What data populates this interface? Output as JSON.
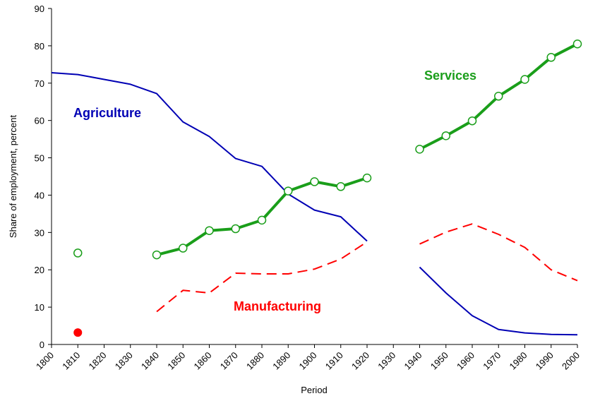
{
  "chart_data": {
    "type": "line",
    "title": "",
    "xlabel": "Period",
    "ylabel": "Share of employment, percent",
    "xlim": [
      1800,
      2000
    ],
    "ylim": [
      0,
      90
    ],
    "x_ticks": [
      1800,
      1810,
      1820,
      1830,
      1840,
      1850,
      1860,
      1870,
      1880,
      1890,
      1900,
      1910,
      1920,
      1930,
      1940,
      1950,
      1960,
      1970,
      1980,
      1990,
      2000
    ],
    "x_tick_labels": [
      "1800",
      "1810",
      "1820",
      "1830",
      "1840",
      "1850",
      "1860",
      "1870",
      "1880",
      "1890",
      "1900",
      "1910",
      "1920",
      "1930",
      "1940",
      "1950",
      "1960",
      "1970",
      "1980",
      "1990",
      "2000"
    ],
    "y_ticks": [
      0,
      10,
      20,
      30,
      40,
      50,
      60,
      70,
      80,
      90
    ],
    "y_tick_labels": [
      "0",
      "10",
      "20",
      "30",
      "40",
      "50",
      "60",
      "70",
      "80",
      "90"
    ],
    "grid": false,
    "series": [
      {
        "name": "Agriculture",
        "label": "Agriculture",
        "color": "#0000b4",
        "style": "solid",
        "segments": [
          [
            [
              1800,
              72.8
            ],
            [
              1810,
              72.3
            ],
            [
              1820,
              71.0
            ],
            [
              1830,
              69.7
            ],
            [
              1840,
              67.2
            ],
            [
              1850,
              59.6
            ],
            [
              1860,
              55.7
            ],
            [
              1870,
              49.8
            ],
            [
              1880,
              47.7
            ],
            [
              1890,
              40.3
            ],
            [
              1900,
              36.0
            ],
            [
              1910,
              34.2
            ],
            [
              1920,
              27.7
            ]
          ],
          [
            [
              1940,
              20.7
            ],
            [
              1950,
              13.8
            ],
            [
              1960,
              7.7
            ],
            [
              1970,
              4.0
            ],
            [
              1980,
              3.1
            ],
            [
              1990,
              2.7
            ],
            [
              2000,
              2.6
            ]
          ]
        ]
      },
      {
        "name": "Manufacturing",
        "label": "Manufacturing",
        "color": "#ff0000",
        "style": "dashed",
        "isolated_point": [
          1810,
          3.2
        ],
        "segments": [
          [
            [
              1840,
              8.8
            ],
            [
              1850,
              14.5
            ],
            [
              1860,
              13.8
            ],
            [
              1870,
              19.1
            ],
            [
              1880,
              18.9
            ],
            [
              1890,
              18.9
            ],
            [
              1900,
              20.2
            ],
            [
              1910,
              22.9
            ],
            [
              1920,
              27.5
            ]
          ],
          [
            [
              1940,
              26.9
            ],
            [
              1950,
              30.1
            ],
            [
              1960,
              32.3
            ],
            [
              1970,
              29.5
            ],
            [
              1980,
              26.0
            ],
            [
              1990,
              20.0
            ],
            [
              2000,
              17.1
            ]
          ]
        ]
      },
      {
        "name": "Services",
        "label": "Services",
        "color": "#1a9e1a",
        "style": "solid-markers",
        "isolated_point": [
          1810,
          24.5
        ],
        "segments": [
          [
            [
              1840,
              24.0
            ],
            [
              1850,
              25.8
            ],
            [
              1860,
              30.5
            ],
            [
              1870,
              31.0
            ],
            [
              1880,
              33.3
            ],
            [
              1890,
              41.1
            ],
            [
              1900,
              43.6
            ],
            [
              1910,
              42.3
            ],
            [
              1920,
              44.6
            ]
          ],
          [
            [
              1940,
              52.3
            ],
            [
              1950,
              55.9
            ],
            [
              1960,
              59.9
            ],
            [
              1970,
              66.5
            ],
            [
              1980,
              71.0
            ],
            [
              1990,
              76.9
            ],
            [
              2000,
              80.5
            ]
          ]
        ]
      }
    ]
  }
}
